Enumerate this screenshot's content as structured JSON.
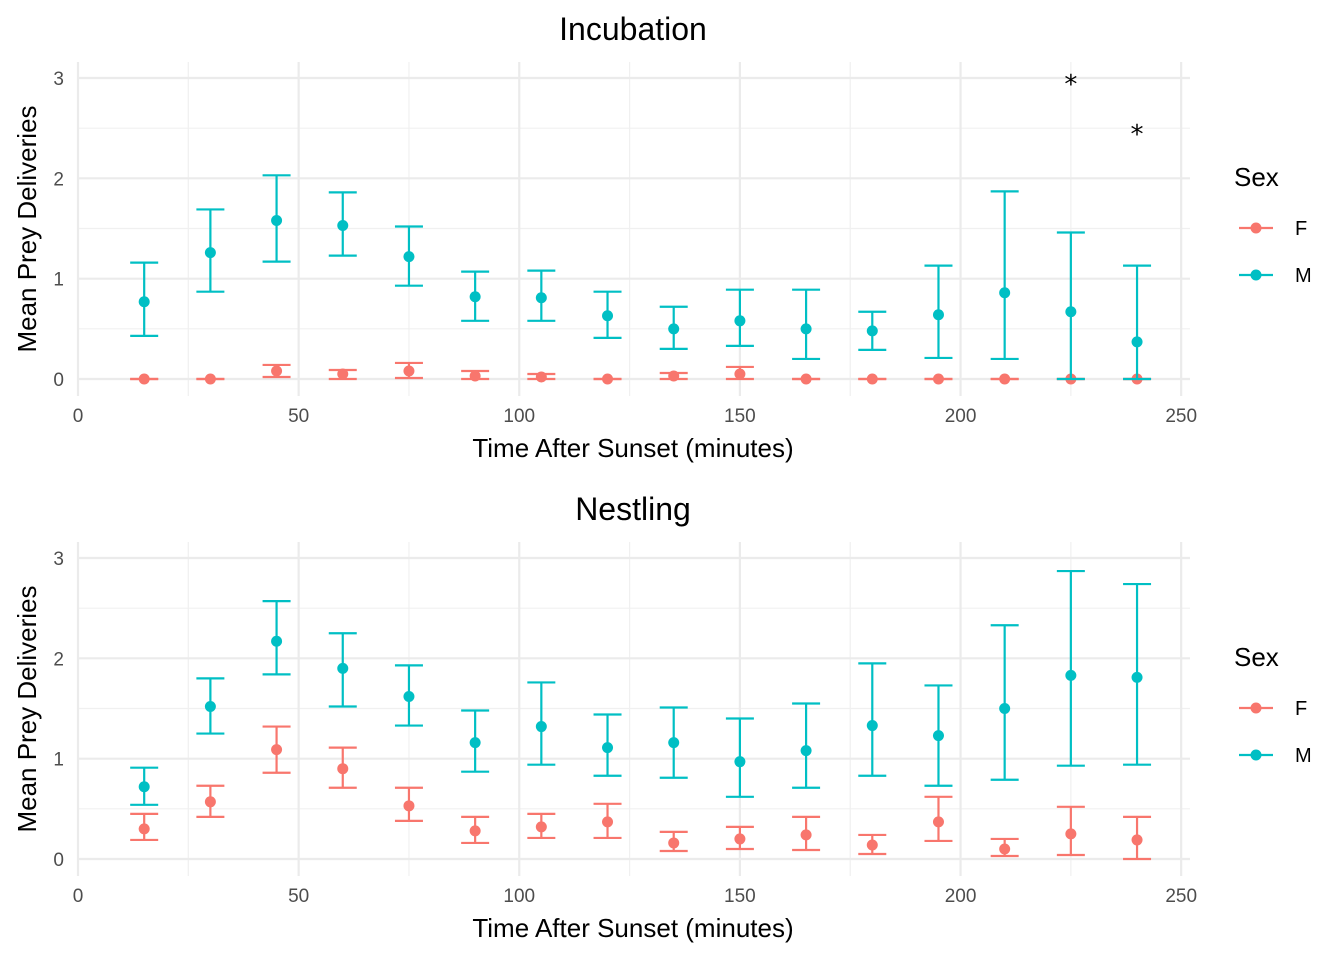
{
  "chart_data": [
    {
      "type": "scatter",
      "title": "Incubation",
      "xlabel": "Time After Sunset (minutes)",
      "ylabel": "Mean Prey Deliveries",
      "xlim": [
        0,
        252
      ],
      "ylim": [
        0,
        3
      ],
      "xticks": [
        0,
        50,
        100,
        150,
        200,
        250
      ],
      "yticks": [
        0,
        1,
        2,
        3
      ],
      "grid": true,
      "legend": {
        "title": "Sex",
        "position": "right"
      },
      "x": [
        15,
        30,
        45,
        60,
        75,
        90,
        105,
        120,
        135,
        150,
        165,
        180,
        195,
        210,
        225,
        240
      ],
      "series": [
        {
          "name": "F",
          "color": "#F8766D",
          "mean": [
            0.0,
            0.0,
            0.08,
            0.05,
            0.08,
            0.03,
            0.02,
            0.0,
            0.03,
            0.05,
            0.0,
            0.0,
            0.0,
            0.0,
            0.0,
            0.0
          ],
          "lower": [
            0.0,
            0.0,
            0.02,
            0.0,
            0.01,
            0.0,
            0.0,
            0.0,
            0.0,
            0.0,
            0.0,
            0.0,
            0.0,
            0.0,
            0.0,
            0.0
          ],
          "upper": [
            0.0,
            0.0,
            0.14,
            0.09,
            0.16,
            0.08,
            0.05,
            0.0,
            0.06,
            0.12,
            0.0,
            0.0,
            0.0,
            0.0,
            0.0,
            0.0
          ]
        },
        {
          "name": "M",
          "color": "#00BFC4",
          "mean": [
            0.77,
            1.26,
            1.58,
            1.53,
            1.22,
            0.82,
            0.81,
            0.63,
            0.5,
            0.58,
            0.5,
            0.48,
            0.64,
            0.86,
            0.67,
            0.37
          ],
          "lower": [
            0.43,
            0.87,
            1.17,
            1.23,
            0.93,
            0.58,
            0.58,
            0.41,
            0.3,
            0.33,
            0.2,
            0.29,
            0.21,
            0.2,
            0.0,
            0.0
          ],
          "upper": [
            1.16,
            1.69,
            2.03,
            1.86,
            1.52,
            1.07,
            1.08,
            0.87,
            0.72,
            0.89,
            0.89,
            0.67,
            1.13,
            1.87,
            1.46,
            1.13
          ]
        }
      ],
      "annotations": [
        {
          "text": "*",
          "x": 225,
          "y": 3.0
        },
        {
          "text": "*",
          "x": 240,
          "y": 2.5
        }
      ]
    },
    {
      "type": "scatter",
      "title": "Nestling",
      "xlabel": "Time After Sunset (minutes)",
      "ylabel": "Mean Prey Deliveries",
      "xlim": [
        0,
        252
      ],
      "ylim": [
        0,
        3
      ],
      "xticks": [
        0,
        50,
        100,
        150,
        200,
        250
      ],
      "yticks": [
        0,
        1,
        2,
        3
      ],
      "grid": true,
      "legend": {
        "title": "Sex",
        "position": "right"
      },
      "x": [
        15,
        30,
        45,
        60,
        75,
        90,
        105,
        120,
        135,
        150,
        165,
        180,
        195,
        210,
        225,
        240
      ],
      "series": [
        {
          "name": "F",
          "color": "#F8766D",
          "mean": [
            0.3,
            0.57,
            1.09,
            0.9,
            0.53,
            0.28,
            0.32,
            0.37,
            0.16,
            0.2,
            0.24,
            0.14,
            0.37,
            0.1,
            0.25,
            0.19
          ],
          "lower": [
            0.19,
            0.42,
            0.86,
            0.71,
            0.38,
            0.16,
            0.21,
            0.21,
            0.08,
            0.1,
            0.09,
            0.05,
            0.18,
            0.03,
            0.04,
            0.0
          ],
          "upper": [
            0.45,
            0.73,
            1.32,
            1.11,
            0.71,
            0.42,
            0.45,
            0.55,
            0.27,
            0.32,
            0.42,
            0.24,
            0.62,
            0.2,
            0.52,
            0.42
          ]
        },
        {
          "name": "M",
          "color": "#00BFC4",
          "mean": [
            0.72,
            1.52,
            2.17,
            1.9,
            1.62,
            1.16,
            1.32,
            1.11,
            1.16,
            0.97,
            1.08,
            1.33,
            1.23,
            1.5,
            1.83,
            1.81
          ],
          "lower": [
            0.54,
            1.25,
            1.84,
            1.52,
            1.33,
            0.87,
            0.94,
            0.83,
            0.81,
            0.62,
            0.71,
            0.83,
            0.73,
            0.79,
            0.93,
            0.94
          ],
          "upper": [
            0.91,
            1.8,
            2.57,
            2.25,
            1.93,
            1.48,
            1.76,
            1.44,
            1.51,
            1.4,
            1.55,
            1.95,
            1.73,
            2.33,
            2.87,
            2.74
          ]
        }
      ],
      "annotations": []
    }
  ]
}
